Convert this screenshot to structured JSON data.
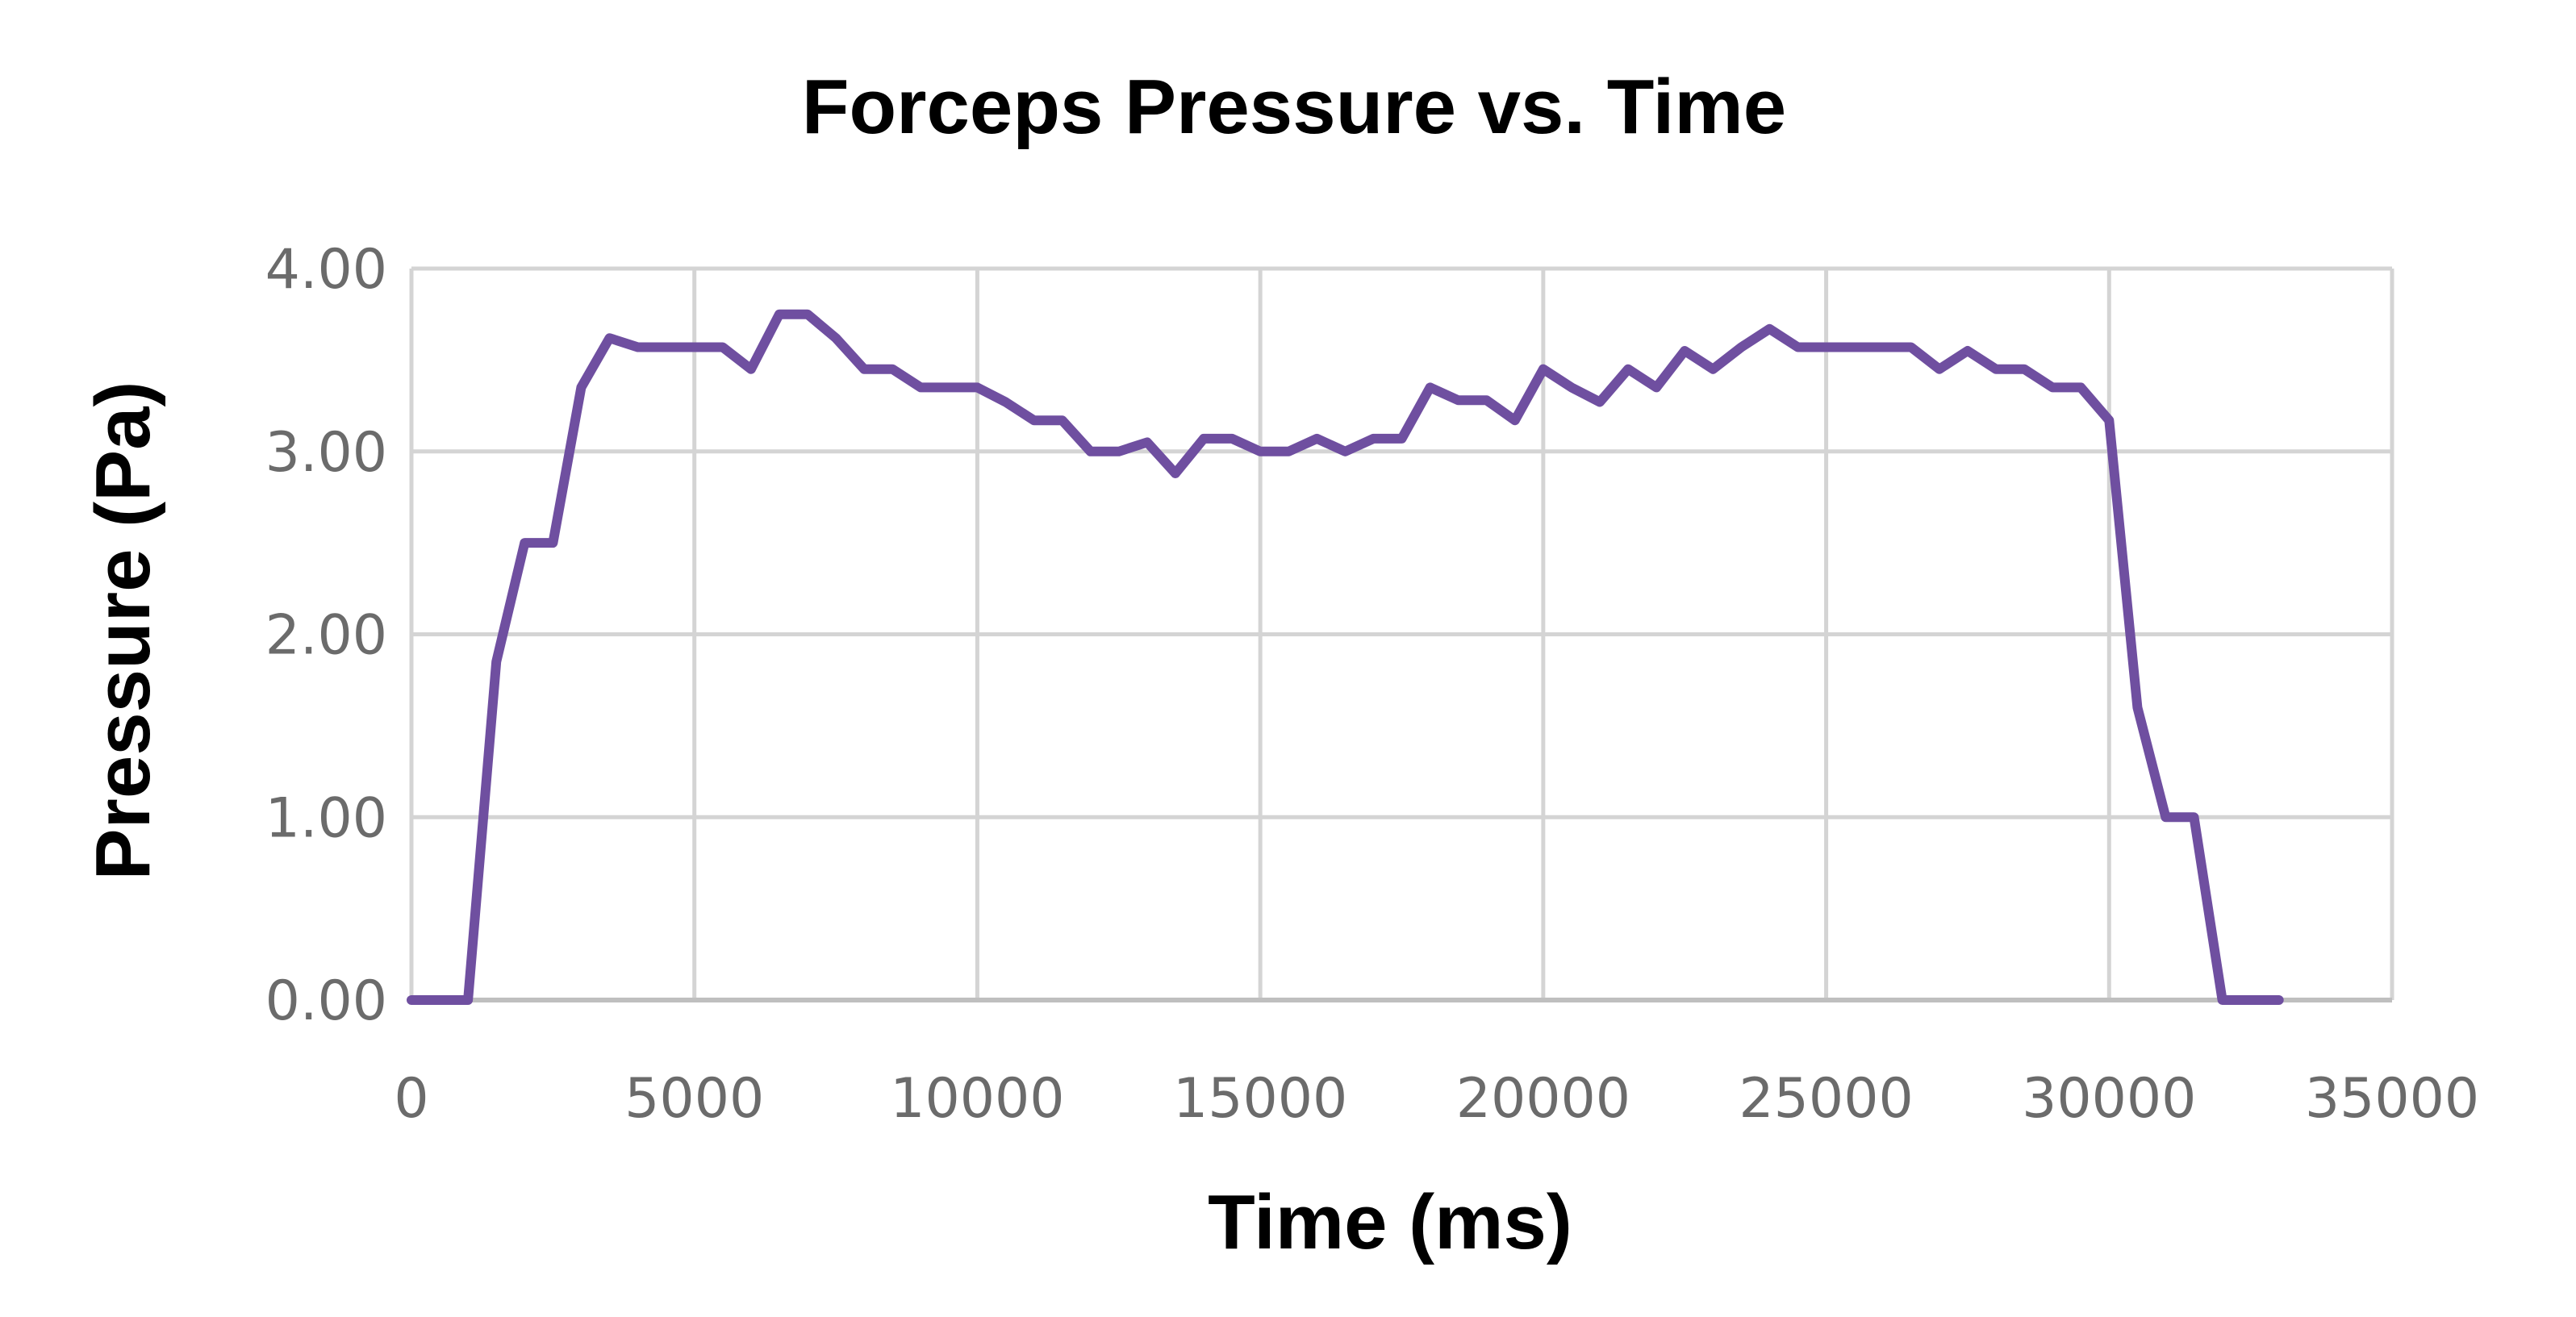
{
  "chart_data": {
    "type": "line",
    "title": "Forceps Pressure vs. Time",
    "xlabel": "Time (ms)",
    "ylabel": "Pressure (Pa)",
    "xlim": [
      0,
      35000
    ],
    "ylim": [
      0,
      4
    ],
    "x_ticks": [
      "0",
      "5000",
      "10000",
      "15000",
      "20000",
      "25000",
      "30000",
      "35000"
    ],
    "y_ticks": [
      "0.00",
      "1.00",
      "2.00",
      "3.00",
      "4.00"
    ],
    "grid": true,
    "legend": "none",
    "series": [
      {
        "color": "#6f4fa0",
        "x": [
          0,
          1000,
          1500,
          2000,
          2500,
          3000,
          3500,
          4000,
          4500,
          5000,
          5500,
          6000,
          6500,
          7000,
          7500,
          8000,
          8500,
          9000,
          9500,
          10000,
          10500,
          11000,
          11500,
          12000,
          12500,
          13000,
          13500,
          14000,
          14500,
          15000,
          15500,
          16000,
          16500,
          17000,
          17500,
          18000,
          18500,
          19000,
          19500,
          20000,
          20500,
          21000,
          21500,
          22000,
          22500,
          23000,
          23500,
          24000,
          24500,
          25000,
          25500,
          26000,
          26500,
          27000,
          27500,
          28000,
          28500,
          29000,
          29500,
          30000,
          30500,
          31000,
          31500,
          32000,
          32500,
          33000
        ],
        "y": [
          0.0,
          0.0,
          1.85,
          2.5,
          2.5,
          3.35,
          3.62,
          3.57,
          3.57,
          3.57,
          3.57,
          3.45,
          3.75,
          3.75,
          3.62,
          3.45,
          3.45,
          3.35,
          3.35,
          3.35,
          3.27,
          3.17,
          3.17,
          3.0,
          3.0,
          3.05,
          2.88,
          3.07,
          3.07,
          3.0,
          3.0,
          3.07,
          3.0,
          3.07,
          3.07,
          3.35,
          3.28,
          3.28,
          3.17,
          3.45,
          3.35,
          3.27,
          3.45,
          3.35,
          3.55,
          3.45,
          3.57,
          3.67,
          3.57,
          3.57,
          3.57,
          3.57,
          3.57,
          3.45,
          3.55,
          3.45,
          3.45,
          3.35,
          3.35,
          3.17,
          1.6,
          1.0,
          1.0,
          0.0,
          0.0,
          0.0
        ]
      }
    ]
  }
}
